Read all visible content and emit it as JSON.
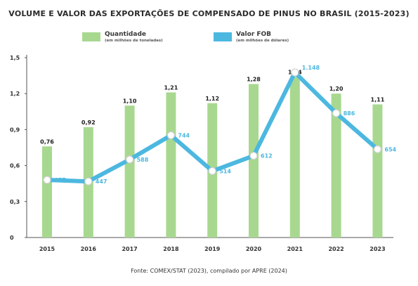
{
  "chart_data": {
    "type": "bar",
    "title": "VOLUME E VALOR DAS EXPORTAÇÕES DE COMPENSADO DE PINUS NO BRASIL (2015-2023)",
    "categories": [
      "2015",
      "2016",
      "2017",
      "2018",
      "2019",
      "2020",
      "2021",
      "2022",
      "2023"
    ],
    "ylim": [
      0,
      1.5
    ],
    "yticks": [
      "0",
      "0,3",
      "0,6",
      "0,9",
      "1,2",
      "1,5"
    ],
    "yticks_values": [
      0,
      0.3,
      0.6,
      0.9,
      1.2,
      1.5
    ],
    "grid": false,
    "legend_position": "top",
    "series": [
      {
        "name": "Quantidade",
        "subtitle": "(em milhões de toneladas)",
        "type": "bar",
        "color": "#a8d890",
        "values": [
          0.76,
          0.92,
          1.1,
          1.21,
          1.12,
          1.28,
          1.34,
          1.2,
          1.11
        ],
        "labels": [
          "0,76",
          "0,92",
          "1,10",
          "1,21",
          "1,12",
          "1,28",
          "1,34",
          "1,20",
          "1,11"
        ]
      },
      {
        "name": "Valor FOB",
        "subtitle": "(em milhões de dólares)",
        "type": "line",
        "color": "#4cb8e0",
        "values": [
          457,
          447,
          588,
          744,
          514,
          612,
          1148,
          886,
          654
        ],
        "labels": [
          "457",
          "447",
          "588",
          "744",
          "514",
          "612",
          "1.148",
          "886",
          "654"
        ]
      }
    ],
    "source": "Fonte: COMEX/STAT (2023), compilado por APRE (2024)"
  }
}
